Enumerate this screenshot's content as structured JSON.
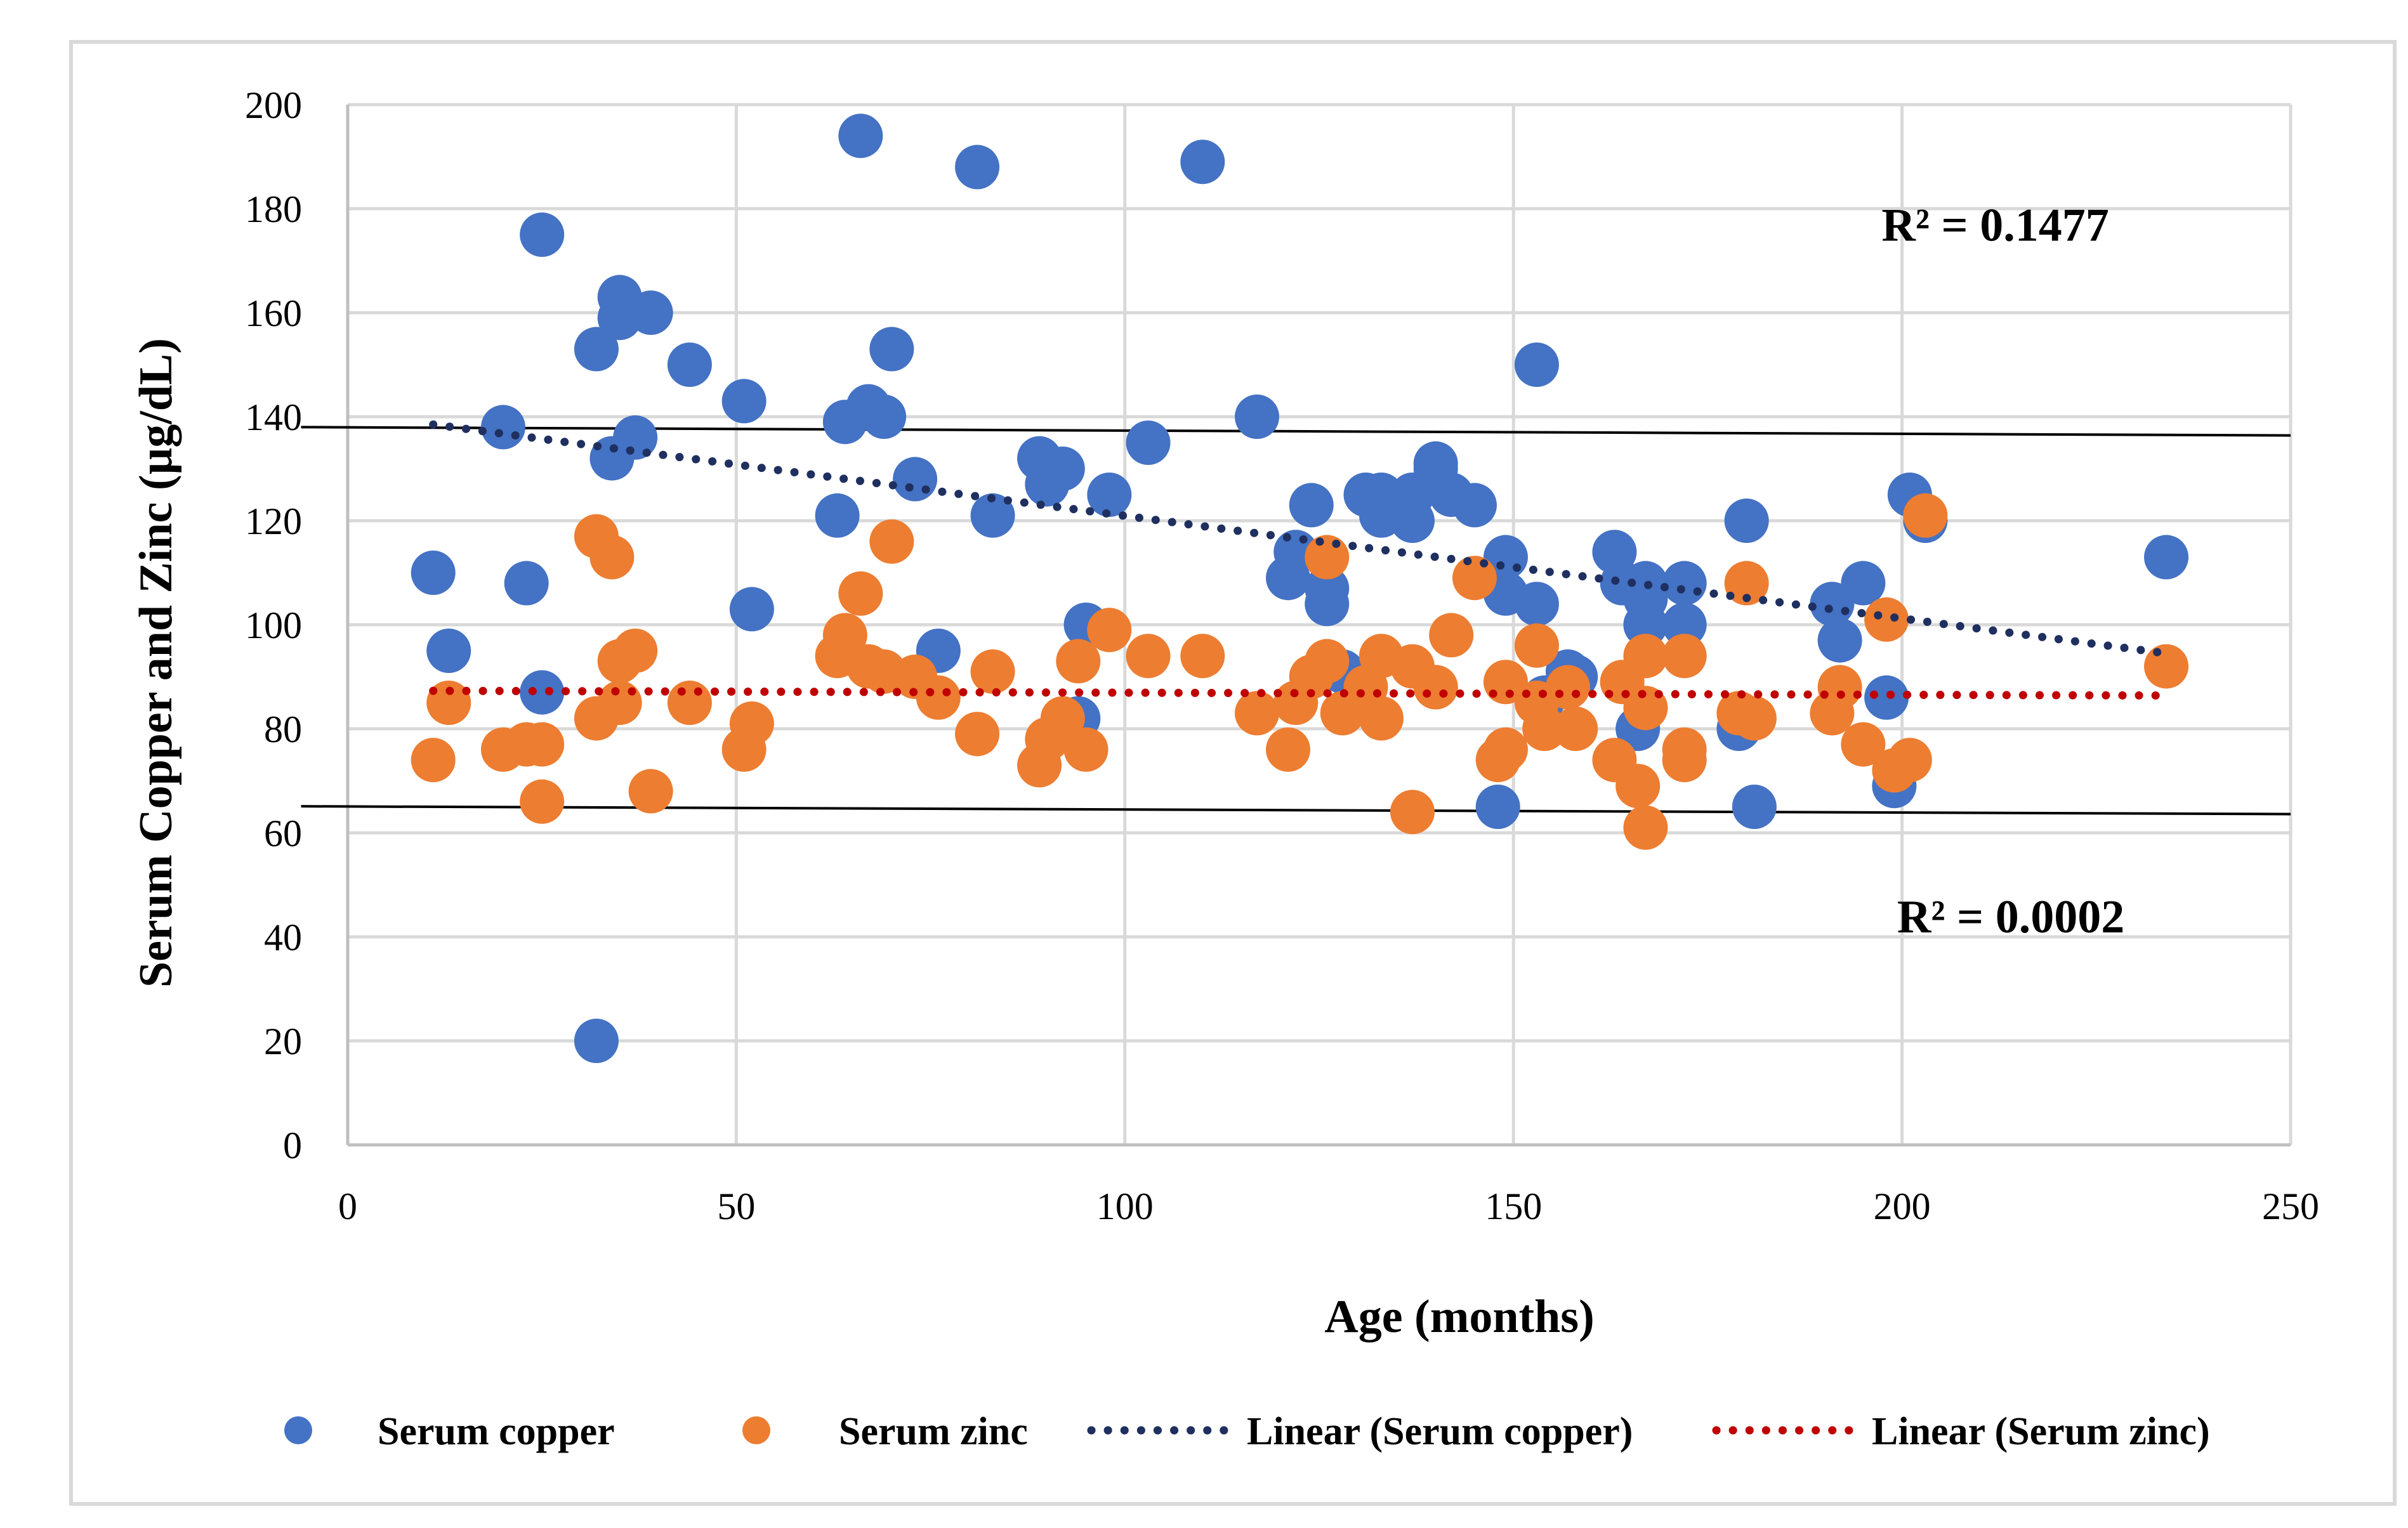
{
  "chart_data": {
    "type": "scatter",
    "title": "",
    "xlabel": "Age (months)",
    "ylabel": "Serum Copper and Zinc (µg/dL)",
    "xlim": [
      0,
      250
    ],
    "ylim": [
      0,
      200
    ],
    "x_ticks": [
      0,
      50,
      100,
      150,
      200,
      250
    ],
    "y_ticks": [
      0,
      20,
      40,
      60,
      80,
      100,
      120,
      140,
      160,
      180,
      200
    ],
    "x_tick_labels": [
      "0",
      "50",
      "100",
      "150",
      "200",
      "250"
    ],
    "y_tick_labels": [
      "0",
      "20",
      "40",
      "60",
      "80",
      "100",
      "120",
      "140",
      "160",
      "180",
      "200"
    ],
    "grid": true,
    "legend_position": "bottom",
    "series": [
      {
        "name": "Serum copper",
        "color": "#4472C4",
        "points": [
          [
            11,
            110
          ],
          [
            13,
            95
          ],
          [
            20,
            138
          ],
          [
            23,
            108
          ],
          [
            25,
            175
          ],
          [
            25,
            87
          ],
          [
            32,
            153
          ],
          [
            32,
            20
          ],
          [
            34,
            132
          ],
          [
            35,
            163
          ],
          [
            35,
            159
          ],
          [
            37,
            136
          ],
          [
            39,
            160
          ],
          [
            44,
            150
          ],
          [
            51,
            143
          ],
          [
            52,
            103
          ],
          [
            63,
            121
          ],
          [
            64,
            139
          ],
          [
            66,
            194
          ],
          [
            67,
            142
          ],
          [
            69,
            140
          ],
          [
            70,
            153
          ],
          [
            73,
            128
          ],
          [
            76,
            95
          ],
          [
            81,
            188
          ],
          [
            83,
            121
          ],
          [
            89,
            132
          ],
          [
            90,
            127
          ],
          [
            92,
            130
          ],
          [
            94,
            82
          ],
          [
            95,
            100
          ],
          [
            98,
            125
          ],
          [
            103,
            135
          ],
          [
            110,
            189
          ],
          [
            117,
            140
          ],
          [
            121,
            109
          ],
          [
            122,
            114
          ],
          [
            124,
            123
          ],
          [
            126,
            107
          ],
          [
            126,
            104
          ],
          [
            128,
            91
          ],
          [
            131,
            125
          ],
          [
            133,
            121
          ],
          [
            133,
            125
          ],
          [
            137,
            125
          ],
          [
            137,
            120
          ],
          [
            140,
            131
          ],
          [
            140,
            130
          ],
          [
            142,
            125
          ],
          [
            145,
            123
          ],
          [
            148,
            65
          ],
          [
            149,
            113
          ],
          [
            149,
            106
          ],
          [
            153,
            150
          ],
          [
            153,
            104
          ],
          [
            154,
            86
          ],
          [
            157,
            91
          ],
          [
            158,
            90
          ],
          [
            163,
            114
          ],
          [
            164,
            108
          ],
          [
            166,
            80
          ],
          [
            167,
            105
          ],
          [
            167,
            108
          ],
          [
            167,
            100
          ],
          [
            172,
            108
          ],
          [
            172,
            100
          ],
          [
            179,
            80
          ],
          [
            180,
            120
          ],
          [
            181,
            65
          ],
          [
            191,
            104
          ],
          [
            192,
            97
          ],
          [
            195,
            108
          ],
          [
            198,
            86
          ],
          [
            199,
            69
          ],
          [
            201,
            125
          ],
          [
            203,
            120
          ],
          [
            234,
            113
          ]
        ]
      },
      {
        "name": "Serum zinc",
        "color": "#ED7D31",
        "points": [
          [
            11,
            74
          ],
          [
            13,
            85
          ],
          [
            20,
            76
          ],
          [
            23,
            77
          ],
          [
            25,
            77
          ],
          [
            25,
            66
          ],
          [
            32,
            117
          ],
          [
            32,
            82
          ],
          [
            34,
            113
          ],
          [
            35,
            93
          ],
          [
            35,
            85
          ],
          [
            37,
            95
          ],
          [
            39,
            68
          ],
          [
            44,
            85
          ],
          [
            51,
            76
          ],
          [
            52,
            81
          ],
          [
            63,
            94
          ],
          [
            64,
            98
          ],
          [
            66,
            106
          ],
          [
            67,
            92
          ],
          [
            69,
            91
          ],
          [
            70,
            116
          ],
          [
            73,
            90
          ],
          [
            76,
            86
          ],
          [
            81,
            79
          ],
          [
            83,
            91
          ],
          [
            89,
            73
          ],
          [
            90,
            78
          ],
          [
            92,
            82
          ],
          [
            94,
            93
          ],
          [
            95,
            76
          ],
          [
            98,
            99
          ],
          [
            103,
            94
          ],
          [
            110,
            94
          ],
          [
            117,
            83
          ],
          [
            121,
            76
          ],
          [
            122,
            85
          ],
          [
            124,
            90
          ],
          [
            126,
            113
          ],
          [
            126,
            93
          ],
          [
            128,
            83
          ],
          [
            131,
            88
          ],
          [
            133,
            82
          ],
          [
            133,
            94
          ],
          [
            137,
            92
          ],
          [
            137,
            64
          ],
          [
            140,
            88
          ],
          [
            140,
            88
          ],
          [
            142,
            98
          ],
          [
            145,
            109
          ],
          [
            148,
            74
          ],
          [
            149,
            89
          ],
          [
            149,
            76
          ],
          [
            153,
            96
          ],
          [
            153,
            85
          ],
          [
            154,
            80
          ],
          [
            157,
            88
          ],
          [
            158,
            80
          ],
          [
            163,
            74
          ],
          [
            164,
            89
          ],
          [
            166,
            69
          ],
          [
            167,
            94
          ],
          [
            167,
            84
          ],
          [
            167,
            61
          ],
          [
            172,
            76
          ],
          [
            172,
            94
          ],
          [
            172,
            74
          ],
          [
            179,
            83
          ],
          [
            180,
            108
          ],
          [
            181,
            82
          ],
          [
            191,
            83
          ],
          [
            192,
            88
          ],
          [
            195,
            77
          ],
          [
            198,
            101
          ],
          [
            199,
            72
          ],
          [
            201,
            74
          ],
          [
            203,
            121
          ],
          [
            234,
            92
          ]
        ]
      }
    ],
    "trendlines": [
      {
        "name": "Linear (Serum copper)",
        "color": "#1F2F5F",
        "style": "dotted",
        "x": [
          11,
          234
        ],
        "y": [
          138.5,
          94.5
        ]
      },
      {
        "name": "Linear (Serum zinc)",
        "color": "#C00000",
        "style": "dotted",
        "x": [
          11,
          234
        ],
        "y": [
          87.3,
          86.4
        ]
      }
    ],
    "reference_lines": [
      {
        "name": "upper reference",
        "color": "#000000",
        "x": [
          -6,
          250
        ],
        "y": [
          138,
          136.4
        ]
      },
      {
        "name": "lower reference",
        "color": "#000000",
        "x": [
          -6,
          250
        ],
        "y": [
          65.1,
          63.6
        ]
      }
    ],
    "annotations": [
      "R² = 0.1477",
      "R² = 0.0002"
    ],
    "annotation_values": [
      [
        212,
        177
      ],
      [
        214,
        44
      ]
    ],
    "legend": [
      "Serum copper",
      "Serum zinc",
      "Linear (Serum copper)",
      "Linear (Serum zinc)"
    ]
  }
}
